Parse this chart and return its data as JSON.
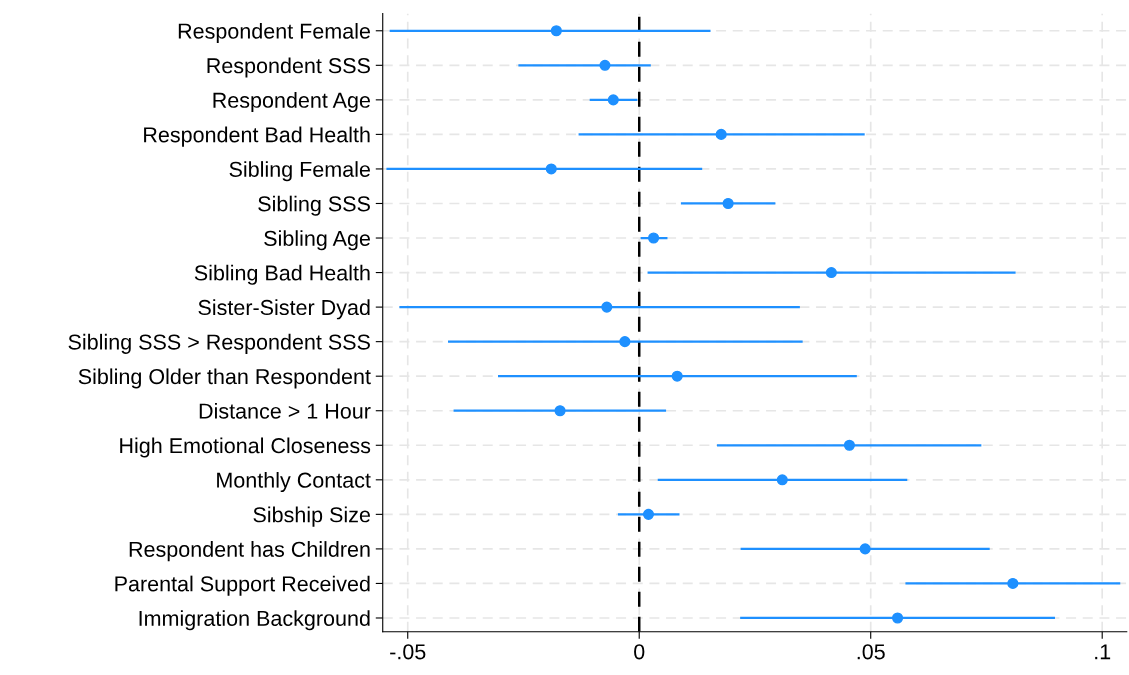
{
  "chart_data": {
    "type": "scatter",
    "orientation": "horizontal",
    "categories": [
      "Respondent Female",
      "Respondent SSS",
      "Respondent Age",
      "Respondent Bad Health",
      "Sibling Female",
      "Sibling SSS",
      "Sibling Age",
      "Sibling Bad Health",
      "Sister-Sister Dyad",
      "Sibling SSS > Respondent SSS",
      "Sibling Older than Respondent",
      "Distance > 1 Hour",
      "High Emotional Closeness",
      "Monthly Contact",
      "Sibship Size",
      "Respondent has Children",
      "Parental Support Received",
      "Immigration Background"
    ],
    "values": [
      -0.0179,
      -0.0074,
      -0.0056,
      0.0177,
      -0.019,
      0.0192,
      0.0031,
      0.0415,
      -0.007,
      -0.0031,
      0.0082,
      -0.0171,
      0.0454,
      0.0309,
      0.002,
      0.0488,
      0.0807,
      0.0558
    ],
    "errors": [
      [
        -0.0539,
        0.0154
      ],
      [
        -0.0261,
        0.0025
      ],
      [
        -0.0107,
        -0.0004
      ],
      [
        -0.0131,
        0.0487
      ],
      [
        -0.0546,
        0.0136
      ],
      [
        0.009,
        0.0294
      ],
      [
        0.0003,
        0.0061
      ],
      [
        0.0018,
        0.0813
      ],
      [
        -0.0518,
        0.0347
      ],
      [
        -0.0413,
        0.0353
      ],
      [
        -0.0305,
        0.047
      ],
      [
        -0.0401,
        0.0058
      ],
      [
        0.0168,
        0.0739
      ],
      [
        0.004,
        0.0579
      ],
      [
        -0.0046,
        0.0087
      ],
      [
        0.0219,
        0.0757
      ],
      [
        0.0575,
        0.1039
      ],
      [
        0.0218,
        0.0898
      ]
    ],
    "color": "#1e90ff",
    "marker": "circle",
    "xlim": [
      -0.0554,
      0.1053
    ],
    "xticks": [
      {
        "value": -0.05,
        "label": "-.05"
      },
      0,
      {
        "value": 0.05,
        "label": ".05"
      },
      {
        "value": 0.1,
        "label": ".1"
      }
    ],
    "ref_lines": [
      {
        "axis": "x",
        "value": 0,
        "color": "#000000",
        "line_style": "dashed"
      }
    ],
    "grid": true
  }
}
